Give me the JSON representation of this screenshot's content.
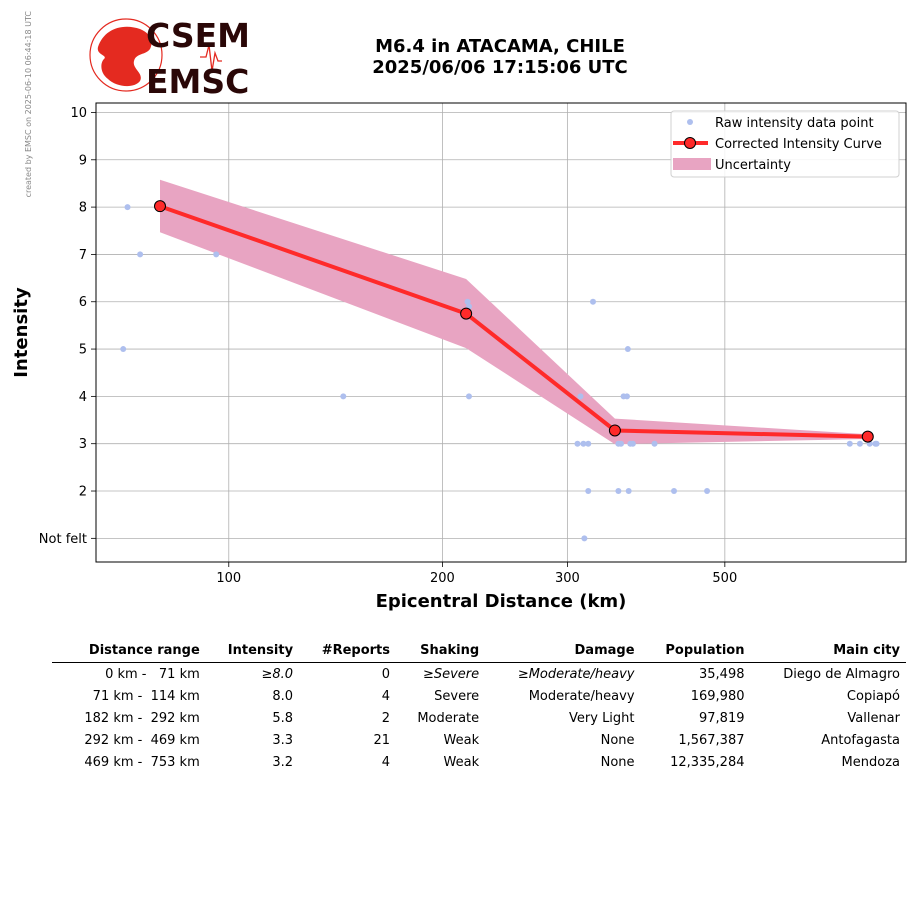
{
  "watermark": "created by EMSC on 2025-06-10 06:44:18 UTC",
  "logo": {
    "line1": "CSEM",
    "line2": "EMSC"
  },
  "title": {
    "line1": "M6.4 in ATACAMA, CHILE",
    "line2": "2025/06/06 17:15:06 UTC"
  },
  "colors": {
    "raw": "#aebfee",
    "curve": "#ff2a2a",
    "uncertainty": "#e8a4c2",
    "marker_face": "#ff2a2a",
    "logo_red": "#e42a20",
    "logo_dark": "#2a0707"
  },
  "chart_data": {
    "type": "line",
    "xlabel": "Epicentral Distance (km)",
    "ylabel": "Intensity",
    "xscale": "log",
    "xlim": [
      65,
      900
    ],
    "ylim": [
      0.5,
      10.2
    ],
    "xticks": [
      100,
      200,
      300,
      500
    ],
    "xtick_labels": [
      "100",
      "200",
      "300",
      "500"
    ],
    "yticks": [
      1,
      2,
      3,
      4,
      5,
      6,
      7,
      8,
      9,
      10
    ],
    "ytick_labels": [
      "Not felt",
      "2",
      "3",
      "4",
      "5",
      "6",
      "7",
      "8",
      "9",
      "10"
    ],
    "grid": true,
    "legend_position": "top-right",
    "legend": [
      "Raw intensity data point",
      "Corrected Intensity Curve",
      "Uncertainty"
    ],
    "raw_points": [
      [
        72,
        8
      ],
      [
        75,
        7
      ],
      [
        96,
        7
      ],
      [
        71,
        5
      ],
      [
        145,
        4
      ],
      [
        217,
        6
      ],
      [
        218,
        4
      ],
      [
        218,
        5.9
      ],
      [
        326,
        6
      ],
      [
        313,
        4
      ],
      [
        365,
        5
      ],
      [
        360,
        4
      ],
      [
        364,
        4
      ],
      [
        310,
        3
      ],
      [
        316,
        3
      ],
      [
        321,
        3
      ],
      [
        354,
        3
      ],
      [
        357,
        3
      ],
      [
        368,
        3
      ],
      [
        371,
        3
      ],
      [
        398,
        3
      ],
      [
        321,
        2
      ],
      [
        354,
        2
      ],
      [
        366,
        2
      ],
      [
        424,
        2
      ],
      [
        472,
        2
      ],
      [
        317,
        1
      ],
      [
        750,
        3
      ],
      [
        775,
        3
      ],
      [
        800,
        3
      ],
      [
        815,
        3
      ],
      [
        818,
        3
      ]
    ],
    "series": [
      {
        "name": "Corrected Intensity Curve",
        "x": [
          80,
          216,
          350,
          795
        ],
        "y": [
          8.02,
          5.75,
          3.28,
          3.15
        ]
      }
    ],
    "uncertainty": {
      "x": [
        80,
        216,
        350,
        795
      ],
      "upper": [
        8.58,
        6.48,
        3.53,
        3.2
      ],
      "lower": [
        7.47,
        5.02,
        2.99,
        3.1
      ]
    }
  },
  "table": {
    "headers": [
      "Distance range",
      "Intensity",
      "#Reports",
      "Shaking",
      "Damage",
      "Population",
      "Main city"
    ],
    "rows": [
      [
        "0 km -   71 km",
        "≥8.0",
        "0",
        "≥Severe",
        "≥Moderate/heavy",
        "35,498",
        "Diego de Almagro"
      ],
      [
        "71 km -  114 km",
        "8.0",
        "4",
        "Severe",
        "Moderate/heavy",
        "169,980",
        "Copiapó"
      ],
      [
        "182 km -  292 km",
        "5.8",
        "2",
        "Moderate",
        "Very Light",
        "97,819",
        "Vallenar"
      ],
      [
        "292 km -  469 km",
        "3.3",
        "21",
        "Weak",
        "None",
        "1,567,387",
        "Antofagasta"
      ],
      [
        "469 km -  753 km",
        "3.2",
        "4",
        "Weak",
        "None",
        "12,335,284",
        "Mendoza"
      ]
    ],
    "italic_row": 0
  }
}
